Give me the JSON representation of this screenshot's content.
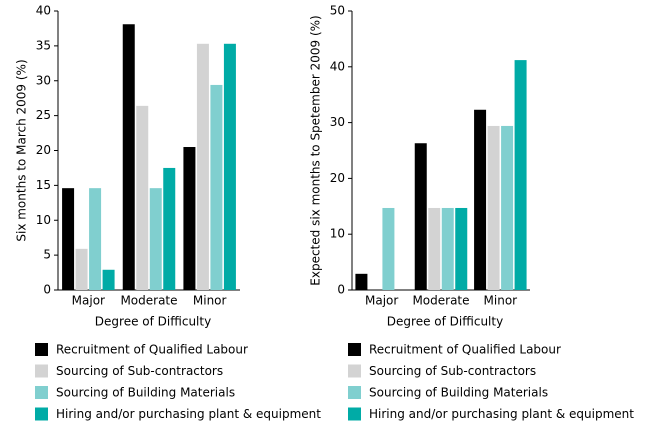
{
  "chart_data": [
    {
      "type": "bar",
      "ylabel": "Six months to March 2009 (%)",
      "xlabel": "Degree of Difficulty",
      "categories": [
        "Major",
        "Moderate",
        "Minor"
      ],
      "ylim": [
        0,
        40
      ],
      "yticks": [
        0,
        5,
        10,
        15,
        20,
        25,
        30,
        35,
        40
      ],
      "series": [
        {
          "name": "Recruitment of Qualified Labour",
          "color": "#000000",
          "values": [
            14.6,
            38.1,
            20.5
          ]
        },
        {
          "name": "Sourcing of Sub-contractors",
          "color": "#d3d3d3",
          "values": [
            5.9,
            26.4,
            35.3
          ]
        },
        {
          "name": "Sourcing of Building Materials",
          "color": "#80cfcf",
          "values": [
            14.6,
            14.6,
            29.4
          ]
        },
        {
          "name": "Hiring and/or purchasing plant & equipment",
          "color": "#00aba6",
          "values": [
            2.9,
            17.5,
            35.3
          ]
        }
      ]
    },
    {
      "type": "bar",
      "ylabel": "Expected six months to Spetember 2009 (%)",
      "xlabel": "Degree of Difficulty",
      "categories": [
        "Major",
        "Moderate",
        "Minor"
      ],
      "ylim": [
        0,
        50
      ],
      "yticks": [
        0,
        10,
        20,
        30,
        40,
        50
      ],
      "series": [
        {
          "name": "Recruitment of Qualified Labour",
          "color": "#000000",
          "values": [
            2.9,
            26.3,
            32.3
          ]
        },
        {
          "name": "Sourcing of Sub-contractors",
          "color": "#d3d3d3",
          "values": [
            0,
            14.7,
            29.4
          ]
        },
        {
          "name": "Sourcing of Building Materials",
          "color": "#80cfcf",
          "values": [
            14.7,
            14.7,
            29.4
          ]
        },
        {
          "name": "Hiring and/or purchasing plant & equipment",
          "color": "#00aba6",
          "values": [
            0,
            14.7,
            41.2
          ]
        }
      ]
    }
  ]
}
